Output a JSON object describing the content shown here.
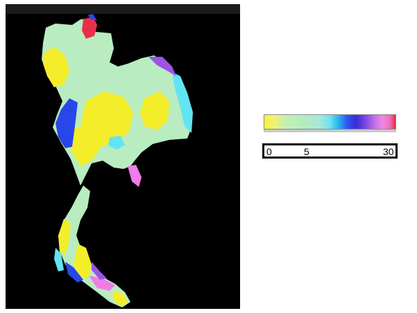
{
  "map": {
    "colors": {
      "background": "#000000",
      "yellow": "#f4ee2a",
      "pale_green": "#b9ecc0",
      "cyan": "#63e4f2",
      "blue": "#2847e8",
      "violet": "#9b54e6",
      "pink": "#f07ce8",
      "red": "#e8304a"
    }
  },
  "legend": {
    "scale_colors": [
      "#f6f23a",
      "#eef27a",
      "#c4f0b0",
      "#b2ecc2",
      "#a8e8d8",
      "#6fe2f0",
      "#2ab8f0",
      "#2d57ee",
      "#3c2cd8",
      "#7848e0",
      "#c070e8",
      "#f088e4",
      "#f06cb8",
      "#e8283c"
    ],
    "tick_labels": [
      "0",
      "5",
      "30"
    ]
  }
}
